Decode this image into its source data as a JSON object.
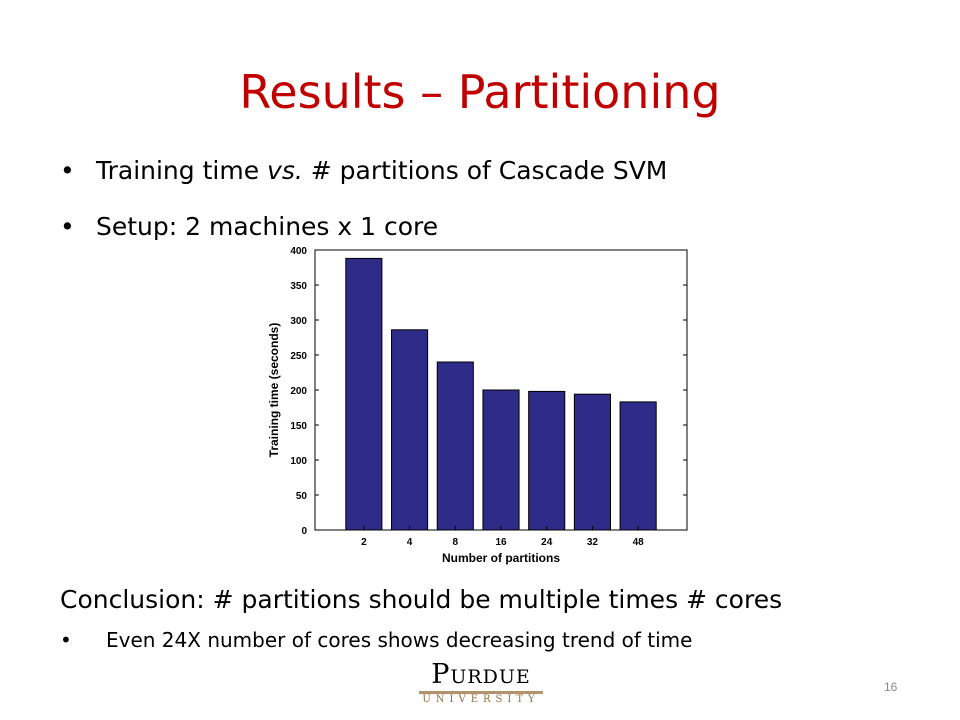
{
  "slide": {
    "title": "Results – Partitioning",
    "bullets": [
      {
        "pre": "Training time ",
        "em": "vs.",
        "post": " # partitions of Cascade SVM"
      },
      {
        "text": "Setup: 2 machines x 1 core"
      }
    ],
    "conclusion": "Conclusion: # partitions should be multiple times # cores",
    "sub_bullet": "Even 24X number of cores shows decreasing trend of time",
    "logo": {
      "name": "Purdue",
      "sub": "UNIVERSITY"
    },
    "page_number": "16"
  },
  "colors": {
    "title": "#c00000",
    "bar_fill": "#2e2b89",
    "logo_gold": "#b1946c"
  },
  "chart_data": {
    "type": "bar",
    "categories": [
      "2",
      "4",
      "8",
      "16",
      "24",
      "32",
      "48"
    ],
    "values": [
      388,
      286,
      240,
      200,
      198,
      194,
      183
    ],
    "xlabel": "Number of partitions",
    "ylabel": "Training time (seconds)",
    "ylim": [
      0,
      400
    ],
    "yticks": [
      0,
      50,
      100,
      150,
      200,
      250,
      300,
      350,
      400
    ],
    "grid": false
  }
}
